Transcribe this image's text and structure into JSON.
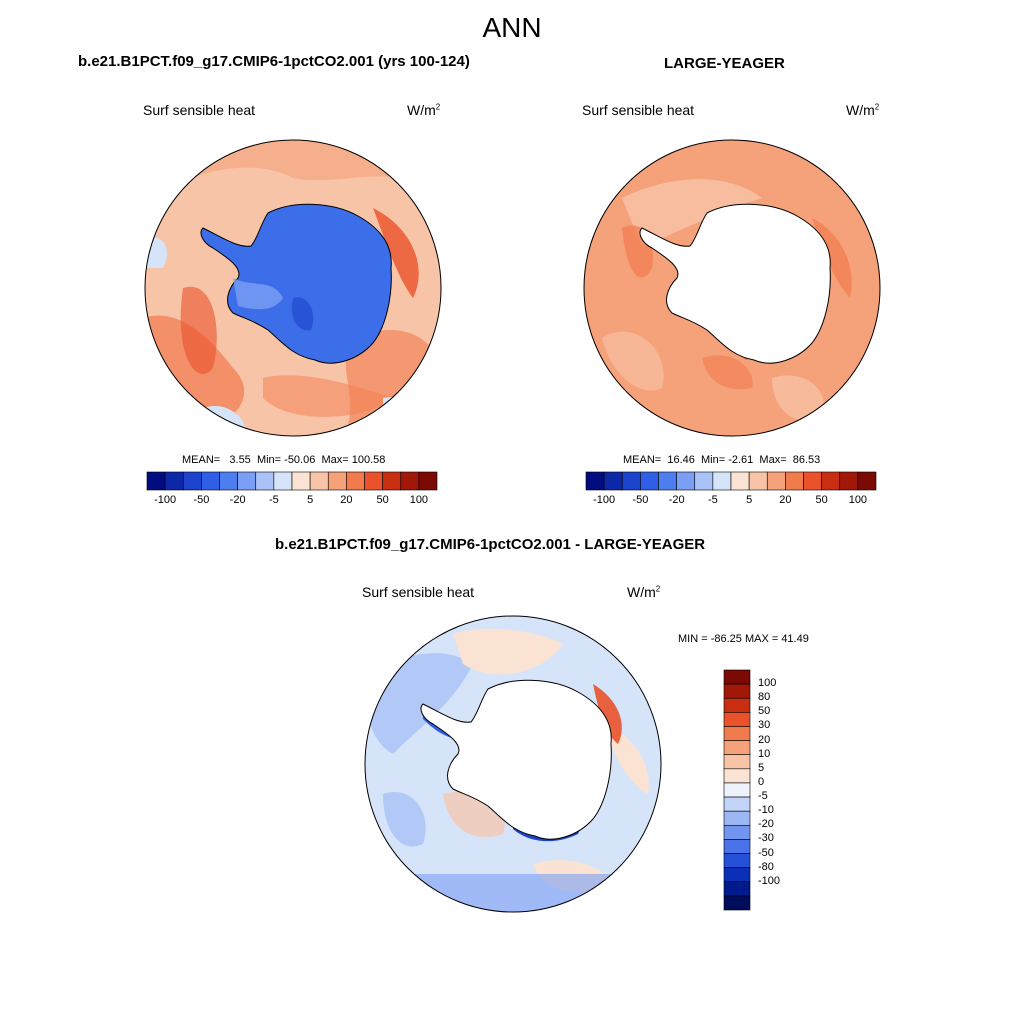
{
  "title": "ANN",
  "panels": [
    {
      "id": "test",
      "case_title": "b.e21.B1PCT.f09_g17.CMIP6-1pctCO2.001 (yrs 100-124)",
      "variable": "Surf sensible heat",
      "units": "W/m",
      "units_exp": "2",
      "stats": {
        "mean_label": "MEAN=",
        "mean": "3.55",
        "min_label": "Min=",
        "min": "-50.06",
        "max_label": "Max=",
        "max": "100.58"
      }
    },
    {
      "id": "obs",
      "case_title": "LARGE-YEAGER",
      "variable": "Surf sensible heat",
      "units": "W/m",
      "units_exp": "2",
      "stats": {
        "mean_label": "MEAN=",
        "mean": "16.46",
        "min_label": "Min=",
        "min": "-2.61",
        "max_label": "Max=",
        "max": "86.53"
      }
    },
    {
      "id": "diff",
      "case_title": "b.e21.B1PCT.f09_g17.CMIP6-1pctCO2.001 - LARGE-YEAGER",
      "variable": "Surf sensible heat",
      "units": "W/m",
      "units_exp": "2",
      "stats_text": "MIN = -86.25 MAX =  41.49"
    }
  ],
  "chart_data": [
    {
      "type": "heatmap",
      "projection": "south polar stereographic",
      "title": "b.e21.B1PCT.f09_g17.CMIP6-1pctCO2.001 (yrs 100-124)",
      "variable": "Surf sensible heat",
      "units": "W/m2",
      "mean": 3.55,
      "min": -50.06,
      "max": 100.58,
      "colorbar_levels": [
        -100,
        -80,
        -50,
        -30,
        -20,
        -10,
        -5,
        0,
        5,
        10,
        20,
        30,
        50,
        80,
        100
      ],
      "colorbar_tick_labels": [
        "-100",
        "-50",
        "-20",
        "-5",
        "5",
        "20",
        "50",
        "100"
      ],
      "colorbar_colors": [
        "#000c80",
        "#0c27a8",
        "#1c43cc",
        "#2e5fe6",
        "#4d7ef0",
        "#7a9ff4",
        "#a9c2f7",
        "#d6e4fa",
        "#fbe3d4",
        "#f8c4a8",
        "#f5a17a",
        "#f27b4e",
        "#e9522b",
        "#c92e12",
        "#a11808",
        "#7a0a03"
      ]
    },
    {
      "type": "heatmap",
      "projection": "south polar stereographic",
      "title": "LARGE-YEAGER",
      "variable": "Surf sensible heat",
      "units": "W/m2",
      "mean": 16.46,
      "min": -2.61,
      "max": 86.53,
      "colorbar_levels": [
        -100,
        -80,
        -50,
        -30,
        -20,
        -10,
        -5,
        0,
        5,
        10,
        20,
        30,
        50,
        80,
        100
      ],
      "colorbar_tick_labels": [
        "-100",
        "-50",
        "-20",
        "-5",
        "5",
        "20",
        "50",
        "100"
      ],
      "colorbar_colors": [
        "#000c80",
        "#0c27a8",
        "#1c43cc",
        "#2e5fe6",
        "#4d7ef0",
        "#7a9ff4",
        "#a9c2f7",
        "#d6e4fa",
        "#fbe3d4",
        "#f8c4a8",
        "#f5a17a",
        "#f27b4e",
        "#e9522b",
        "#c92e12",
        "#a11808",
        "#7a0a03"
      ]
    },
    {
      "type": "heatmap",
      "projection": "south polar stereographic",
      "title": "b.e21.B1PCT.f09_g17.CMIP6-1pctCO2.001 - LARGE-YEAGER",
      "variable": "Surf sensible heat",
      "units": "W/m2",
      "min": -86.25,
      "max": 41.49,
      "colorbar_orientation": "vertical",
      "colorbar_tick_labels": [
        "100",
        "80",
        "50",
        "30",
        "20",
        "10",
        "5",
        "0",
        "-5",
        "-10",
        "-20",
        "-30",
        "-50",
        "-80",
        "-100"
      ],
      "colorbar_colors": [
        "#7a0a03",
        "#a11808",
        "#c92e12",
        "#e9522b",
        "#f27b4e",
        "#f5a17a",
        "#f8c4a8",
        "#fbe3d4",
        "#eef3fb",
        "#c2d4f7",
        "#9bb7f4",
        "#7296f0",
        "#4a73ea",
        "#2550d8",
        "#0c2fb8",
        "#001a8c",
        "#000c5c"
      ]
    }
  ],
  "colors": {
    "ocean_warm": "#f49a73",
    "ocean_mid": "#f7b491",
    "ice_blue": "#3d6eea",
    "land_white": "#ffffff",
    "coast": "#000000"
  }
}
